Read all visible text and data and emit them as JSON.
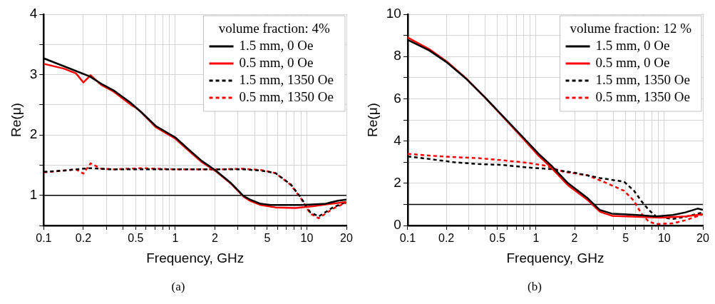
{
  "chart_data": [
    {
      "type": "line",
      "xlabel": "Frequency, GHz",
      "ylabel": "Re(μ)",
      "legend_title": "volume fraction: 4%",
      "legend": "top right",
      "grid": true,
      "log": "x",
      "annotations": [
        "(a)"
      ],
      "xlim": [
        0.1,
        20
      ],
      "xticks": [
        0.1,
        0.2,
        {
          "value": 0.3,
          "label": null
        },
        {
          "value": 0.4,
          "label": null
        },
        0.5,
        {
          "value": 0.6,
          "label": null
        },
        {
          "value": 0.7,
          "label": null
        },
        {
          "value": 0.8,
          "label": null
        },
        {
          "value": 0.9,
          "label": null
        },
        1,
        2,
        {
          "value": 3,
          "label": null
        },
        {
          "value": 4,
          "label": null
        },
        5,
        {
          "value": 6,
          "label": null
        },
        {
          "value": 7,
          "label": null
        },
        {
          "value": 8,
          "label": null
        },
        {
          "value": 9,
          "label": null
        },
        10,
        20
      ],
      "ylim": [
        0.5,
        4
      ],
      "yticks": [
        {
          "value": 0.5,
          "label": null
        },
        1,
        {
          "value": 1.5,
          "label": null
        },
        2,
        {
          "value": 2.5,
          "label": null
        },
        3,
        {
          "value": 3.5,
          "label": null
        },
        4
      ],
      "ref_lines": [
        {
          "axis": "y",
          "value": 1,
          "color": "#000000"
        }
      ],
      "series": [
        {
          "name": "1.5 mm, 0 Oe",
          "color": "#000000",
          "line_style": "solid",
          "x": [
            0.1,
            0.142,
            0.176,
            0.224,
            0.273,
            0.339,
            0.46,
            0.55,
            0.71,
            1.0,
            1.25,
            1.57,
            2.03,
            2.66,
            3.3,
            3.7,
            4.46,
            5.3,
            6.9,
            8.95,
            11.1,
            13.9,
            17.2,
            20
          ],
          "values": [
            3.27,
            3.14,
            3.06,
            2.97,
            2.85,
            2.74,
            2.53,
            2.38,
            2.15,
            1.96,
            1.77,
            1.58,
            1.41,
            1.2,
            0.99,
            0.93,
            0.86,
            0.84,
            0.84,
            0.84,
            0.85,
            0.86,
            0.91,
            0.93
          ]
        },
        {
          "name": "0.5 mm, 0 Oe",
          "color": "#ff0000",
          "line_style": "solid",
          "x": [
            0.1,
            0.142,
            0.176,
            0.2,
            0.227,
            0.273,
            0.339,
            0.46,
            0.502,
            0.55,
            0.71,
            1.0,
            1.25,
            1.57,
            2.03,
            2.66,
            3.3,
            3.7,
            4.46,
            5.76,
            8.2,
            11.1,
            13.9,
            20
          ],
          "values": [
            3.18,
            3.1,
            3.02,
            2.87,
            2.99,
            2.83,
            2.72,
            2.5,
            2.45,
            2.38,
            2.13,
            1.94,
            1.75,
            1.56,
            1.4,
            1.19,
            0.98,
            0.91,
            0.84,
            0.8,
            0.79,
            0.82,
            0.85,
            0.89
          ]
        },
        {
          "name": "1.5 mm, 1350 Oe",
          "color": "#000000",
          "line_style": "dashed",
          "x": [
            0.1,
            0.142,
            0.176,
            0.224,
            0.339,
            0.55,
            1.0,
            2.03,
            3.3,
            4.46,
            5.76,
            7.56,
            8.95,
            10.6,
            12.3,
            15.8,
            20
          ],
          "values": [
            1.39,
            1.41,
            1.43,
            1.45,
            1.43,
            1.43,
            1.43,
            1.43,
            1.43,
            1.41,
            1.37,
            1.18,
            0.97,
            0.72,
            0.65,
            0.8,
            0.89
          ]
        },
        {
          "name": "0.5 mm, 1350 Oe",
          "color": "#ff0000",
          "line_style": "dashed",
          "x": [
            0.1,
            0.142,
            0.176,
            0.2,
            0.227,
            0.273,
            0.339,
            0.55,
            1.0,
            2.03,
            3.3,
            4.46,
            5.76,
            7.56,
            8.95,
            10.6,
            12.3,
            15.8,
            20
          ],
          "values": [
            1.38,
            1.41,
            1.43,
            1.36,
            1.53,
            1.44,
            1.43,
            1.45,
            1.43,
            1.43,
            1.44,
            1.42,
            1.37,
            1.17,
            0.96,
            0.7,
            0.62,
            0.78,
            0.88
          ]
        }
      ]
    },
    {
      "type": "line",
      "xlabel": "Frequency, GHz",
      "ylabel": "Re(μ)",
      "legend_title": "volume fraction: 12 %",
      "legend": "top right",
      "grid": true,
      "log": "x",
      "annotations": [
        "(b)"
      ],
      "xlim": [
        0.1,
        20
      ],
      "xticks": [
        0.1,
        0.2,
        {
          "value": 0.3,
          "label": null
        },
        {
          "value": 0.4,
          "label": null
        },
        0.5,
        {
          "value": 0.6,
          "label": null
        },
        {
          "value": 0.7,
          "label": null
        },
        {
          "value": 0.8,
          "label": null
        },
        {
          "value": 0.9,
          "label": null
        },
        1,
        2,
        {
          "value": 3,
          "label": null
        },
        {
          "value": 4,
          "label": null
        },
        5,
        {
          "value": 6,
          "label": null
        },
        {
          "value": 7,
          "label": null
        },
        {
          "value": 8,
          "label": null
        },
        {
          "value": 9,
          "label": null
        },
        10,
        20
      ],
      "ylim": [
        0,
        10
      ],
      "yticks": [
        0,
        {
          "value": 1,
          "label": null
        },
        2,
        {
          "value": 3,
          "label": null
        },
        4,
        {
          "value": 5,
          "label": null
        },
        6,
        {
          "value": 7,
          "label": null
        },
        8,
        {
          "value": 9,
          "label": null
        },
        10
      ],
      "ref_lines": [
        {
          "axis": "y",
          "value": 1,
          "color": "#000000"
        }
      ],
      "series": [
        {
          "name": "1.5 mm, 0 Oe",
          "color": "#000000",
          "line_style": "solid",
          "x": [
            0.1,
            0.147,
            0.2,
            0.284,
            0.402,
            0.546,
            0.775,
            1.05,
            1.31,
            1.78,
            2.54,
            3.14,
            3.91,
            4.87,
            6.09,
            8.63,
            11.7,
            14.6,
            18.2,
            20
          ],
          "values": [
            8.79,
            8.29,
            7.74,
            6.96,
            6.05,
            5.21,
            4.24,
            3.39,
            2.85,
            2.0,
            1.28,
            0.74,
            0.56,
            0.53,
            0.5,
            0.43,
            0.5,
            0.62,
            0.8,
            0.74
          ]
        },
        {
          "name": "0.5 mm, 0 Oe",
          "color": "#ff0000",
          "line_style": "solid",
          "x": [
            0.1,
            0.147,
            0.2,
            0.284,
            0.402,
            0.546,
            0.775,
            1.05,
            1.31,
            1.78,
            2.54,
            3.14,
            3.91,
            6.09,
            9.43,
            14.6,
            20
          ],
          "values": [
            8.9,
            8.35,
            7.78,
            6.98,
            6.05,
            5.18,
            4.18,
            3.3,
            2.75,
            1.9,
            1.2,
            0.66,
            0.46,
            0.41,
            0.37,
            0.43,
            0.53
          ]
        },
        {
          "name": "1.5 mm, 1350 Oe",
          "color": "#000000",
          "line_style": "dashed",
          "x": [
            0.1,
            0.147,
            0.228,
            0.353,
            0.546,
            0.847,
            1.31,
            2.03,
            3.14,
            4.87,
            5.82,
            6.62,
            7.56,
            8.63,
            11.7,
            14.6,
            18.2,
            20
          ],
          "values": [
            3.27,
            3.15,
            3.0,
            2.91,
            2.87,
            2.75,
            2.67,
            2.49,
            2.25,
            2.07,
            1.64,
            1.16,
            0.74,
            0.43,
            0.31,
            0.41,
            0.56,
            0.62
          ]
        },
        {
          "name": "0.5 mm, 1350 Oe",
          "color": "#ff0000",
          "line_style": "dashed",
          "x": [
            0.1,
            0.147,
            0.228,
            0.353,
            0.546,
            0.847,
            1.15,
            1.63,
            2.54,
            3.58,
            4.87,
            5.82,
            6.62,
            7.56,
            8.63,
            11.7,
            14.6,
            20
          ],
          "values": [
            3.39,
            3.31,
            3.24,
            3.19,
            3.09,
            2.97,
            2.85,
            2.55,
            2.37,
            2.0,
            1.64,
            1.16,
            0.56,
            0.19,
            0.07,
            0.1,
            0.25,
            0.53
          ]
        }
      ]
    }
  ]
}
